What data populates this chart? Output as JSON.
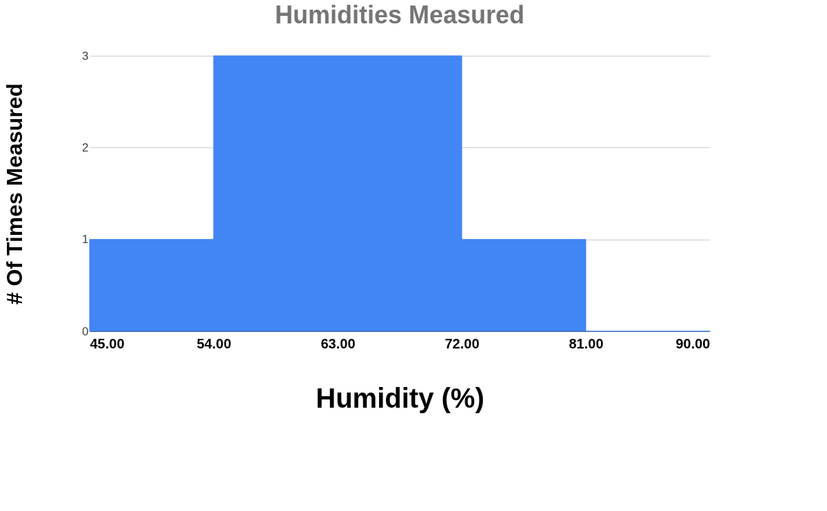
{
  "chart_data": {
    "type": "histogram",
    "title": "Humidities Measured",
    "xlabel": "Humidity (%)",
    "ylabel": "# Of Times Measured",
    "bins": [
      45,
      54,
      63,
      72,
      81,
      90
    ],
    "values": [
      1,
      3,
      3,
      1,
      0
    ],
    "color": "#4285f4",
    "xlim": [
      45,
      90
    ],
    "xticks": [
      {
        "value": 45,
        "label": "45.00"
      },
      {
        "value": 54,
        "label": "54.00"
      },
      {
        "value": 63,
        "label": "63.00"
      },
      {
        "value": 72,
        "label": "72.00"
      },
      {
        "value": 81,
        "label": "81.00"
      },
      {
        "value": 90,
        "label": "90.00"
      }
    ],
    "ylim": [
      0,
      3
    ],
    "yticks": [
      0,
      1,
      2,
      3
    ],
    "grid": "y"
  }
}
